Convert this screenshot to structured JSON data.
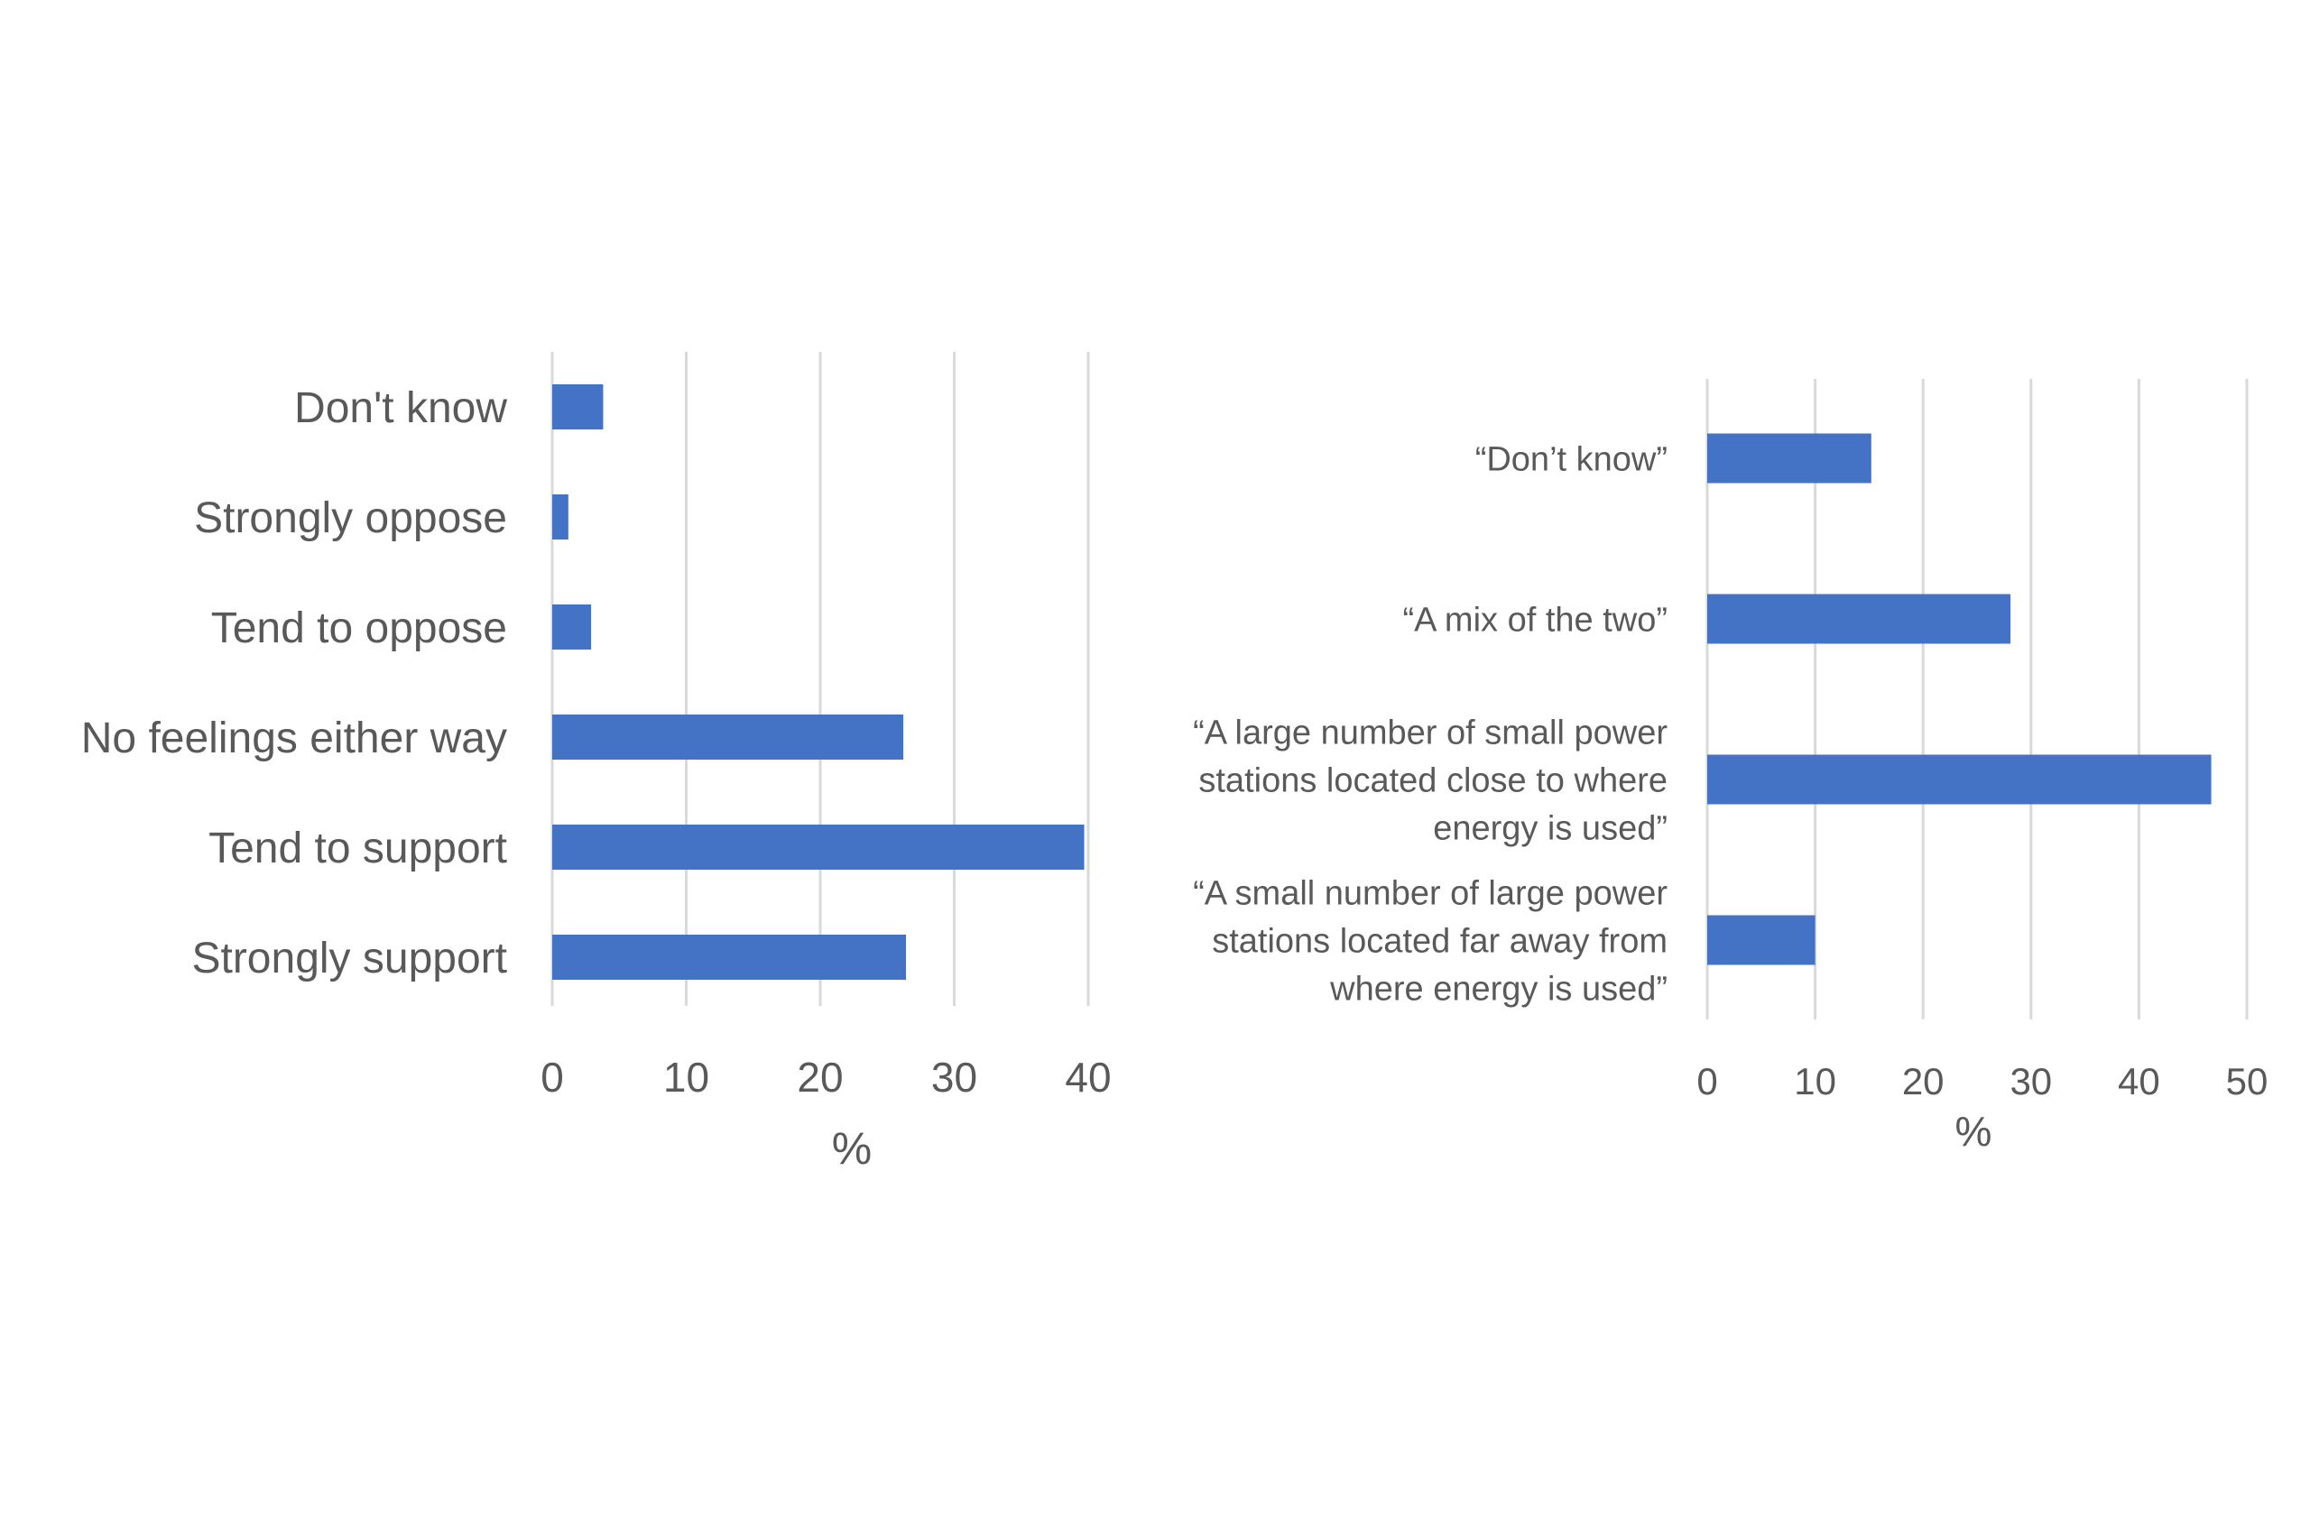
{
  "chart_data": [
    {
      "type": "bar",
      "orientation": "horizontal",
      "categories": [
        "Don't know",
        "Strongly oppose",
        "Tend to oppose",
        "No feelings either way",
        "Tend to support",
        "Strongly support"
      ],
      "values": [
        3.8,
        1.2,
        2.9,
        26.2,
        39.7,
        26.4
      ],
      "xlabel": "%",
      "ylabel": "",
      "xlim": [
        0,
        40
      ],
      "xticks": [
        "0",
        "10",
        "20",
        "30",
        "40"
      ],
      "grid": "vertical",
      "legend": "none",
      "bar_color": "#4472C4"
    },
    {
      "type": "bar",
      "orientation": "horizontal",
      "categories": [
        "“Don’t know”",
        "“A mix of the two”",
        "“A large number of small power stations located close to where energy is used”",
        "“A small number of large power stations located far away from where energy is used”"
      ],
      "category_lines": [
        [
          "“Don’t know”"
        ],
        [
          "“A mix of the two”"
        ],
        [
          "“A large number of small power",
          "stations located close to where",
          "energy is used”"
        ],
        [
          "“A small number of large power",
          "stations located far away from",
          "where energy is used”"
        ]
      ],
      "values": [
        15.2,
        28.1,
        46.7,
        10.0
      ],
      "xlabel": "%",
      "ylabel": "",
      "xlim": [
        0,
        50
      ],
      "xticks": [
        "0",
        "10",
        "20",
        "30",
        "40",
        "50"
      ],
      "grid": "vertical",
      "legend": "none",
      "bar_color": "#4472C4"
    }
  ]
}
